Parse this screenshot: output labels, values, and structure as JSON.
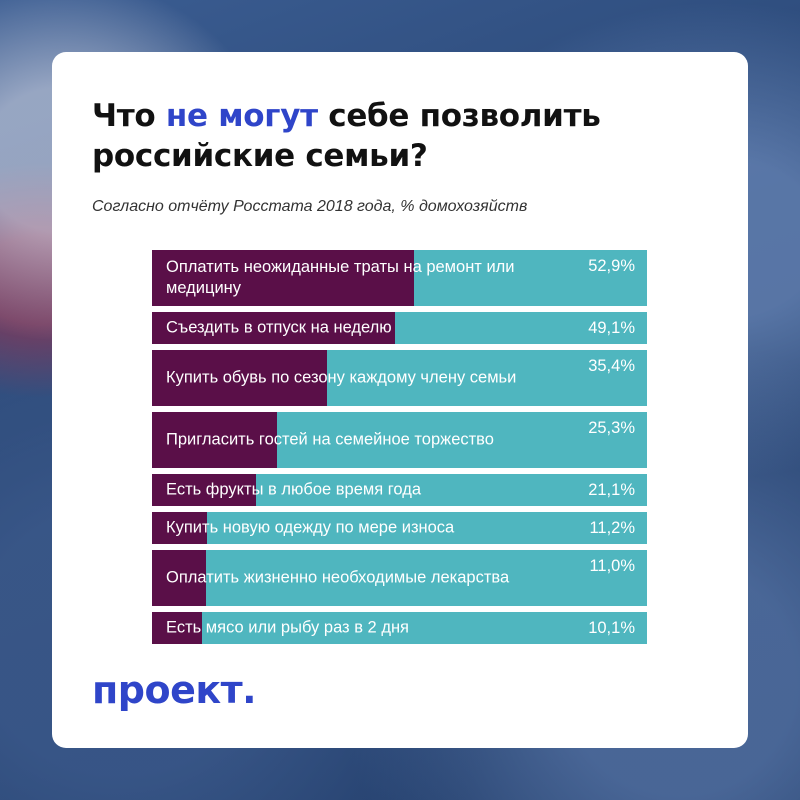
{
  "title": {
    "part1": "Что ",
    "highlight": "не могут",
    "part2": " себе позволить российские семьи?"
  },
  "subtitle": "Согласно отчёту Росстата 2018 года, % домохозяйств",
  "logo": "проект.",
  "colors": {
    "bar_bg": "#4fb6bf",
    "bar_fill": "#5a0f48",
    "highlight": "#2f45c9"
  },
  "chart_data": {
    "type": "bar",
    "orientation": "horizontal",
    "stacked_fill": true,
    "categories": [
      "Оплатить неожиданные траты на ремонт или медицину",
      "Съездить в отпуск на неделю",
      "Купить обувь по сезону каждому члену семьи",
      "Пригласить гостей на семейное торжество",
      "Есть фрукты в любое время года",
      "Купить новую одежду по мере износа",
      "Оплатить жизненно необходимые лекарства",
      "Есть мясо или рыбу раз в 2 дня"
    ],
    "values": [
      52.9,
      49.1,
      35.4,
      25.3,
      21.1,
      11.2,
      11.0,
      10.1
    ],
    "value_labels": [
      "52,9%",
      "49,1%",
      "35,4%",
      "25,3%",
      "21,1%",
      "11,2%",
      "11,0%",
      "10,1%"
    ],
    "xlim": [
      0,
      100
    ],
    "grid": false
  }
}
